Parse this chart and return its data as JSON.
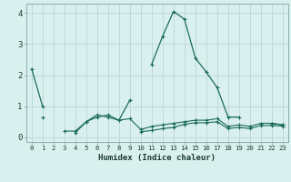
{
  "xlabel": "Humidex (Indice chaleur)",
  "x": [
    0,
    1,
    2,
    3,
    4,
    5,
    6,
    7,
    8,
    9,
    10,
    11,
    12,
    13,
    14,
    15,
    16,
    17,
    18,
    19,
    20,
    21,
    22,
    23
  ],
  "line1": [
    2.2,
    1.0,
    null,
    null,
    0.15,
    0.5,
    0.72,
    0.65,
    0.55,
    1.2,
    null,
    2.35,
    3.25,
    4.05,
    3.8,
    2.55,
    2.1,
    1.6,
    0.65,
    0.65,
    null,
    null,
    0.45,
    0.4
  ],
  "line3": [
    null,
    0.65,
    null,
    0.2,
    0.2,
    0.5,
    0.65,
    0.72,
    0.55,
    0.6,
    0.25,
    0.35,
    0.4,
    0.45,
    0.5,
    0.55,
    0.55,
    0.6,
    0.35,
    0.4,
    0.35,
    0.45,
    0.45,
    0.4
  ],
  "line4": [
    null,
    null,
    null,
    null,
    null,
    null,
    null,
    null,
    null,
    null,
    0.18,
    0.22,
    0.28,
    0.32,
    0.42,
    0.47,
    0.47,
    0.5,
    0.28,
    0.32,
    0.28,
    0.38,
    0.38,
    0.36
  ],
  "line_color": "#1a6b5a",
  "bg_color": "#daf0ee",
  "grid_color": "#b8d8d4",
  "ylim": [
    -0.15,
    4.3
  ],
  "xlim": [
    -0.5,
    23.5
  ]
}
